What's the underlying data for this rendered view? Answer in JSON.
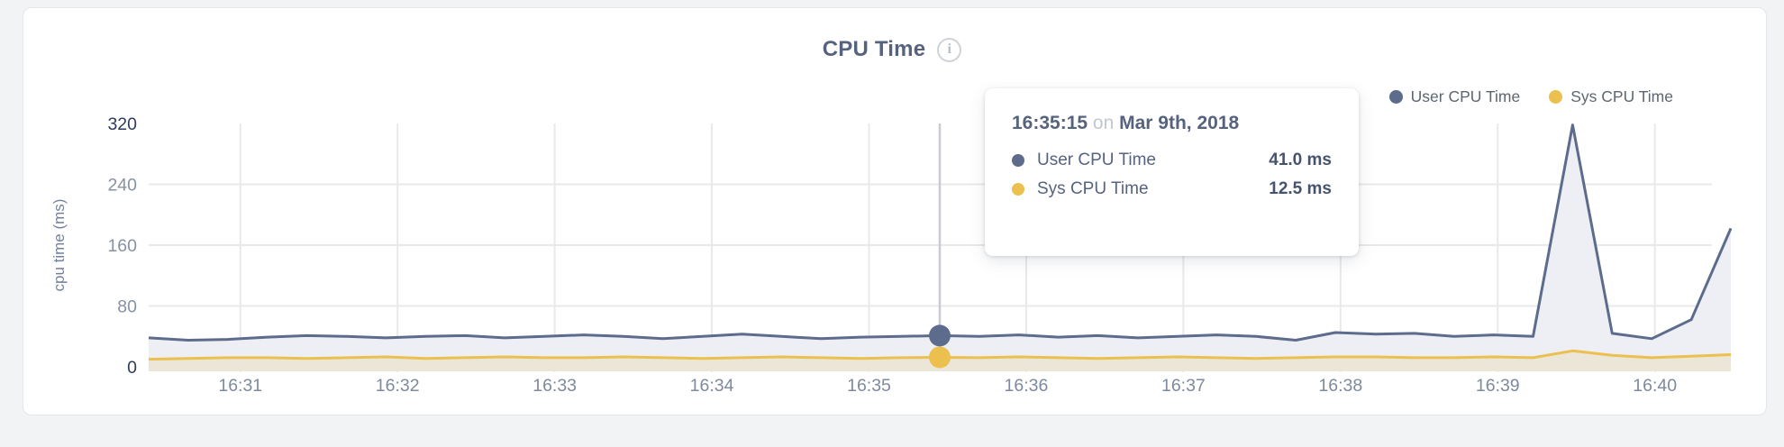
{
  "header": {
    "title": "CPU Time"
  },
  "legend": {
    "items": [
      {
        "label": "User CPU Time",
        "color": "#5d6c8c"
      },
      {
        "label": "Sys CPU Time",
        "color": "#ecc04e"
      }
    ]
  },
  "tooltip": {
    "time": "16:35:15",
    "conjunction": "on",
    "date": "Mar 9th, 2018",
    "rows": [
      {
        "label": "User CPU Time",
        "value": "41.0 ms",
        "color": "#5d6c8c"
      },
      {
        "label": "Sys CPU Time",
        "value": "12.5 ms",
        "color": "#ecc04e"
      }
    ]
  },
  "chart_data": {
    "type": "area",
    "title": "CPU Time",
    "xlabel": "",
    "ylabel": "cpu time (ms)",
    "ylim": [
      0,
      320
    ],
    "yticks": [
      0,
      80,
      160,
      240,
      320
    ],
    "xticks": [
      "16:31",
      "16:32",
      "16:33",
      "16:34",
      "16:35",
      "16:36",
      "16:37",
      "16:38",
      "16:39",
      "16:40"
    ],
    "x_range": [
      "16:30:25",
      "16:40:29"
    ],
    "sample_interval_seconds": 15,
    "grid": true,
    "legend_position": "top-right",
    "series": [
      {
        "name": "User CPU Time",
        "color": "#5d6c8c",
        "fill": "#edeff4",
        "values": [
          38,
          35,
          36,
          39,
          41,
          40,
          38,
          40,
          41,
          38,
          40,
          42,
          40,
          37,
          40,
          43,
          40,
          37,
          39,
          40,
          41,
          40,
          42,
          39,
          41,
          38,
          40,
          42,
          40,
          35,
          45,
          43,
          44,
          40,
          42,
          40,
          318,
          44,
          37,
          62,
          182
        ]
      },
      {
        "name": "Sys CPU Time",
        "color": "#ecc04e",
        "fill": "#ebe6d8",
        "values": [
          10,
          11,
          12,
          12,
          11,
          12,
          13,
          11,
          12,
          13,
          12,
          12,
          13,
          12,
          11,
          12,
          13,
          12,
          11,
          12,
          12.5,
          12,
          13,
          12,
          11,
          12,
          13,
          12,
          11,
          12,
          13,
          13,
          12,
          12,
          13,
          12,
          21,
          15,
          12,
          14,
          16
        ]
      }
    ],
    "highlight": {
      "index": 20,
      "time": "16:35:15",
      "date": "Mar 9th, 2018",
      "values": {
        "User CPU Time": 41.0,
        "Sys CPU Time": 12.5
      },
      "crosshair_color": "#c8cbcf"
    },
    "tick_color_edge": "#2e3c59",
    "tick_color_mid": "#8891a2",
    "xtick_color": "#7e8a9e",
    "gridline_color": "#e9e9ea"
  }
}
